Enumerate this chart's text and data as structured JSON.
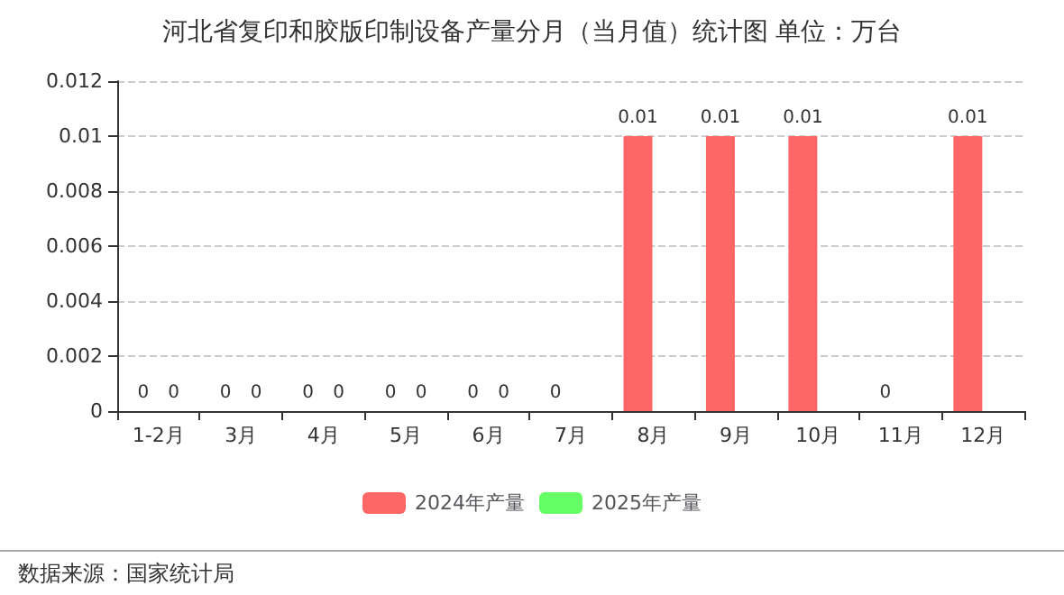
{
  "chart_data": {
    "type": "bar",
    "title": "河北省复印和胶版印制设备产量分月（当月值）统计图 单位：万台",
    "categories": [
      "1-2月",
      "3月",
      "4月",
      "5月",
      "6月",
      "7月",
      "8月",
      "9月",
      "10月",
      "11月",
      "12月"
    ],
    "series": [
      {
        "name": "2024年产量",
        "color": "#ff6666",
        "values": [
          0,
          0,
          0,
          0,
          0,
          0,
          0.01,
          0.01,
          0.01,
          0,
          0.01
        ]
      },
      {
        "name": "2025年产量",
        "color": "#66ff66",
        "values": [
          0,
          0,
          0,
          0,
          0,
          null,
          null,
          null,
          null,
          null,
          null
        ]
      }
    ],
    "ylim": [
      0,
      0.012
    ],
    "yticks": [
      0,
      0.002,
      0.004,
      0.006,
      0.008,
      0.01,
      0.012
    ],
    "grid": "y",
    "legend": "bottom",
    "data_labels": true,
    "annotations": [
      "数据来源：国家统计局"
    ]
  }
}
